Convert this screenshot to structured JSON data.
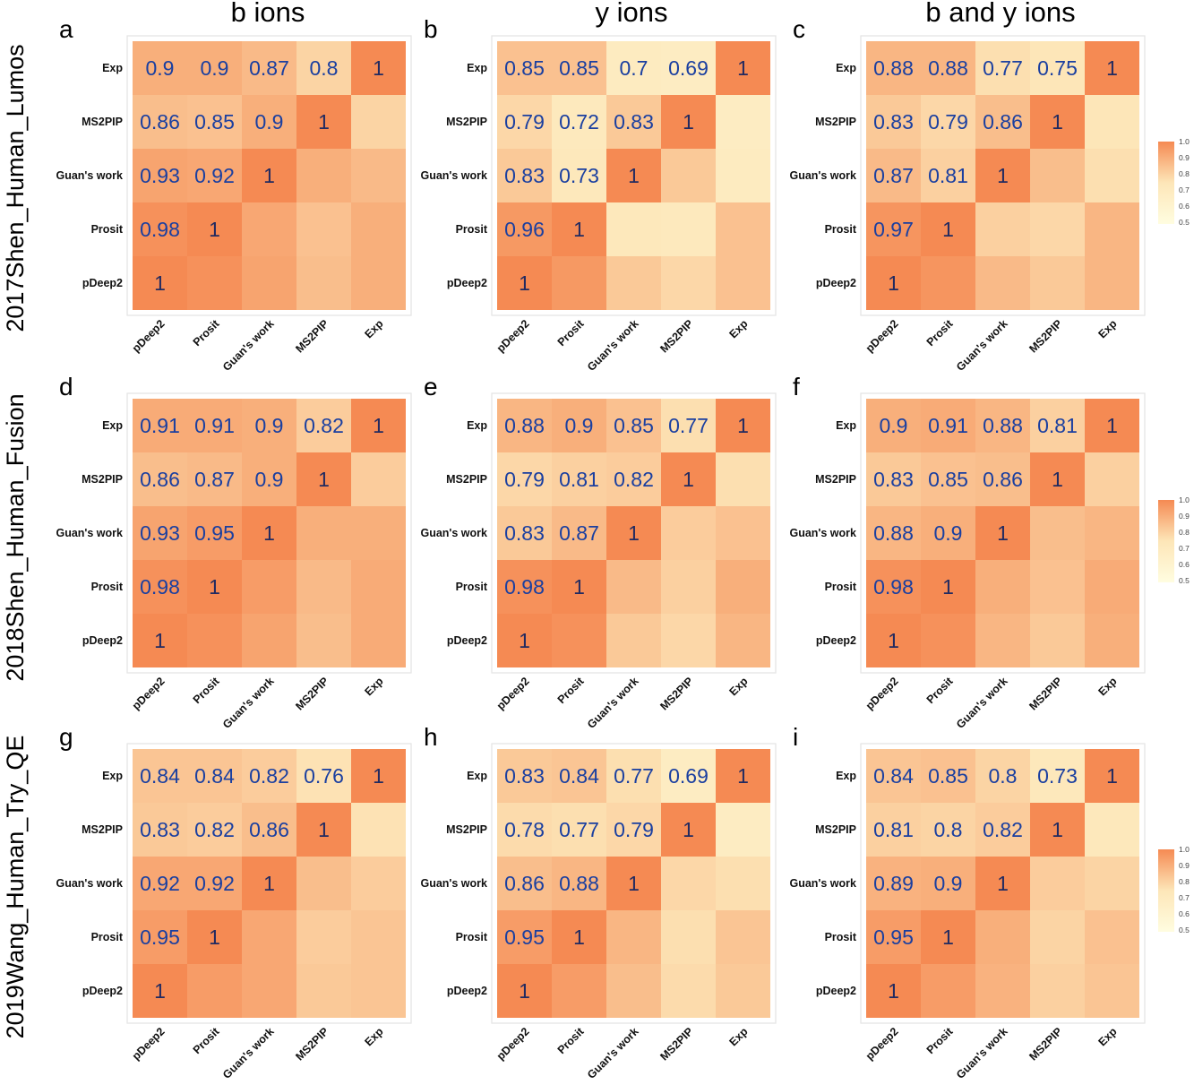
{
  "figure": {
    "column_titles": [
      "b ions",
      "y ions",
      "b and y ions"
    ],
    "row_titles": [
      "2017Shen_Human_Lumos",
      "2018Shen_Human_Fusion",
      "2019Wang_Human_Try_QE"
    ]
  },
  "colors": {
    "low": "#fffde0",
    "mid": "#fde6b8",
    "high": "#f58a53",
    "value_text": "#1a3fa0"
  },
  "legend": {
    "ticks": [
      "1.0",
      "0.9",
      "0.8",
      "0.7",
      "0.6",
      "0.5"
    ],
    "range": [
      0.5,
      1.0
    ]
  },
  "chart_data": [
    {
      "type": "heatmap",
      "panel": "a",
      "categories": [
        "pDeep2",
        "Prosit",
        "Guan's work",
        "MS2PIP",
        "Exp"
      ],
      "matrix": [
        [
          1,
          0.98,
          0.93,
          0.86,
          0.9
        ],
        [
          0.98,
          1,
          0.92,
          0.85,
          0.9
        ],
        [
          0.93,
          0.92,
          1,
          0.9,
          0.87
        ],
        [
          0.86,
          0.85,
          0.9,
          1,
          0.8
        ],
        [
          0.9,
          0.9,
          0.87,
          0.8,
          1
        ]
      ]
    },
    {
      "type": "heatmap",
      "panel": "b",
      "categories": [
        "pDeep2",
        "Prosit",
        "Guan's work",
        "MS2PIP",
        "Exp"
      ],
      "matrix": [
        [
          1,
          0.96,
          0.83,
          0.79,
          0.85
        ],
        [
          0.96,
          1,
          0.73,
          0.72,
          0.85
        ],
        [
          0.83,
          0.73,
          1,
          0.83,
          0.7
        ],
        [
          0.79,
          0.72,
          0.83,
          1,
          0.69
        ],
        [
          0.85,
          0.85,
          0.7,
          0.69,
          1
        ]
      ]
    },
    {
      "type": "heatmap",
      "panel": "c",
      "categories": [
        "pDeep2",
        "Prosit",
        "Guan's work",
        "MS2PIP",
        "Exp"
      ],
      "matrix": [
        [
          1,
          0.97,
          0.87,
          0.83,
          0.88
        ],
        [
          0.97,
          1,
          0.81,
          0.79,
          0.88
        ],
        [
          0.87,
          0.81,
          1,
          0.86,
          0.77
        ],
        [
          0.83,
          0.79,
          0.86,
          1,
          0.75
        ],
        [
          0.88,
          0.88,
          0.77,
          0.75,
          1
        ]
      ]
    },
    {
      "type": "heatmap",
      "panel": "d",
      "categories": [
        "pDeep2",
        "Prosit",
        "Guan's work",
        "MS2PIP",
        "Exp"
      ],
      "matrix": [
        [
          1,
          0.98,
          0.93,
          0.86,
          0.91
        ],
        [
          0.98,
          1,
          0.95,
          0.87,
          0.91
        ],
        [
          0.93,
          0.95,
          1,
          0.9,
          0.9
        ],
        [
          0.86,
          0.87,
          0.9,
          1,
          0.82
        ],
        [
          0.91,
          0.91,
          0.9,
          0.82,
          1
        ]
      ]
    },
    {
      "type": "heatmap",
      "panel": "e",
      "categories": [
        "pDeep2",
        "Prosit",
        "Guan's work",
        "MS2PIP",
        "Exp"
      ],
      "matrix": [
        [
          1,
          0.98,
          0.83,
          0.79,
          0.88
        ],
        [
          0.98,
          1,
          0.87,
          0.81,
          0.9
        ],
        [
          0.83,
          0.87,
          1,
          0.82,
          0.85
        ],
        [
          0.79,
          0.81,
          0.82,
          1,
          0.77
        ],
        [
          0.88,
          0.9,
          0.85,
          0.77,
          1
        ]
      ]
    },
    {
      "type": "heatmap",
      "panel": "f",
      "categories": [
        "pDeep2",
        "Prosit",
        "Guan's work",
        "MS2PIP",
        "Exp"
      ],
      "matrix": [
        [
          1,
          0.98,
          0.88,
          0.83,
          0.9
        ],
        [
          0.98,
          1,
          0.9,
          0.85,
          0.91
        ],
        [
          0.88,
          0.9,
          1,
          0.86,
          0.88
        ],
        [
          0.83,
          0.85,
          0.86,
          1,
          0.81
        ],
        [
          0.9,
          0.91,
          0.88,
          0.81,
          1
        ]
      ]
    },
    {
      "type": "heatmap",
      "panel": "g",
      "categories": [
        "pDeep2",
        "Prosit",
        "Guan's work",
        "MS2PIP",
        "Exp"
      ],
      "matrix": [
        [
          1,
          0.95,
          0.92,
          0.83,
          0.84
        ],
        [
          0.95,
          1,
          0.92,
          0.82,
          0.84
        ],
        [
          0.92,
          0.92,
          1,
          0.86,
          0.82
        ],
        [
          0.83,
          0.82,
          0.86,
          1,
          0.76
        ],
        [
          0.84,
          0.84,
          0.82,
          0.76,
          1
        ]
      ]
    },
    {
      "type": "heatmap",
      "panel": "h",
      "categories": [
        "pDeep2",
        "Prosit",
        "Guan's work",
        "MS2PIP",
        "Exp"
      ],
      "matrix": [
        [
          1,
          0.95,
          0.86,
          0.78,
          0.83
        ],
        [
          0.95,
          1,
          0.88,
          0.77,
          0.84
        ],
        [
          0.86,
          0.88,
          1,
          0.79,
          0.77
        ],
        [
          0.78,
          0.77,
          0.79,
          1,
          0.69
        ],
        [
          0.83,
          0.84,
          0.77,
          0.69,
          1
        ]
      ]
    },
    {
      "type": "heatmap",
      "panel": "i",
      "categories": [
        "pDeep2",
        "Prosit",
        "Guan's work",
        "MS2PIP",
        "Exp"
      ],
      "matrix": [
        [
          1,
          0.95,
          0.89,
          0.81,
          0.84
        ],
        [
          0.95,
          1,
          0.9,
          0.8,
          0.85
        ],
        [
          0.89,
          0.9,
          1,
          0.82,
          0.8
        ],
        [
          0.81,
          0.8,
          0.82,
          1,
          0.73
        ],
        [
          0.84,
          0.85,
          0.8,
          0.73,
          1
        ]
      ]
    }
  ]
}
